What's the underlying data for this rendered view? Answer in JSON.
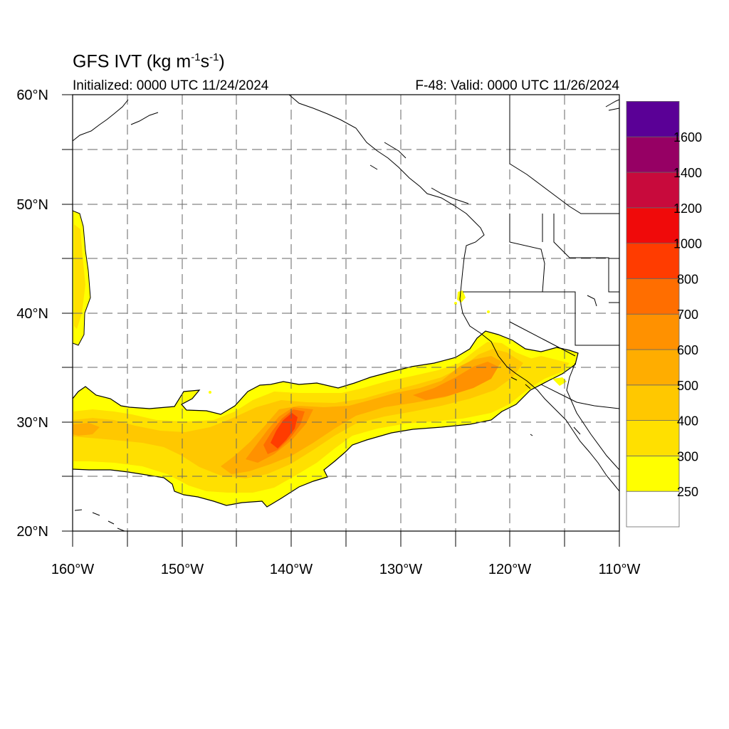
{
  "title": {
    "main": "GFS IVT (kg m",
    "exp1": "-1",
    "mid": "s",
    "exp2": "-1",
    "end": ")"
  },
  "initialized": "Initialized: 0000 UTC 11/24/2024",
  "valid": "F-48: Valid: 0000 UTC 11/26/2024",
  "lat_labels": [
    "60°N",
    "50°N",
    "40°N",
    "30°N",
    "20°N"
  ],
  "lon_labels": [
    "160°W",
    "150°W",
    "140°W",
    "130°W",
    "120°W",
    "110°W"
  ],
  "map_extent": {
    "lon": [
      -160,
      -110
    ],
    "lat": [
      20,
      60
    ]
  },
  "colorbar": {
    "colors": [
      "#ffffff",
      "#ffff00",
      "#ffe000",
      "#ffc800",
      "#ffad00",
      "#ff9100",
      "#ff6e00",
      "#ff3c00",
      "#f00a0a",
      "#c80a3c",
      "#960064",
      "#5a0096"
    ],
    "labels": [
      "250",
      "300",
      "400",
      "500",
      "600",
      "700",
      "800",
      "1000",
      "1200",
      "1400",
      "1600"
    ]
  },
  "colors": {
    "land_outline": "#000000",
    "grid": "#666666"
  }
}
